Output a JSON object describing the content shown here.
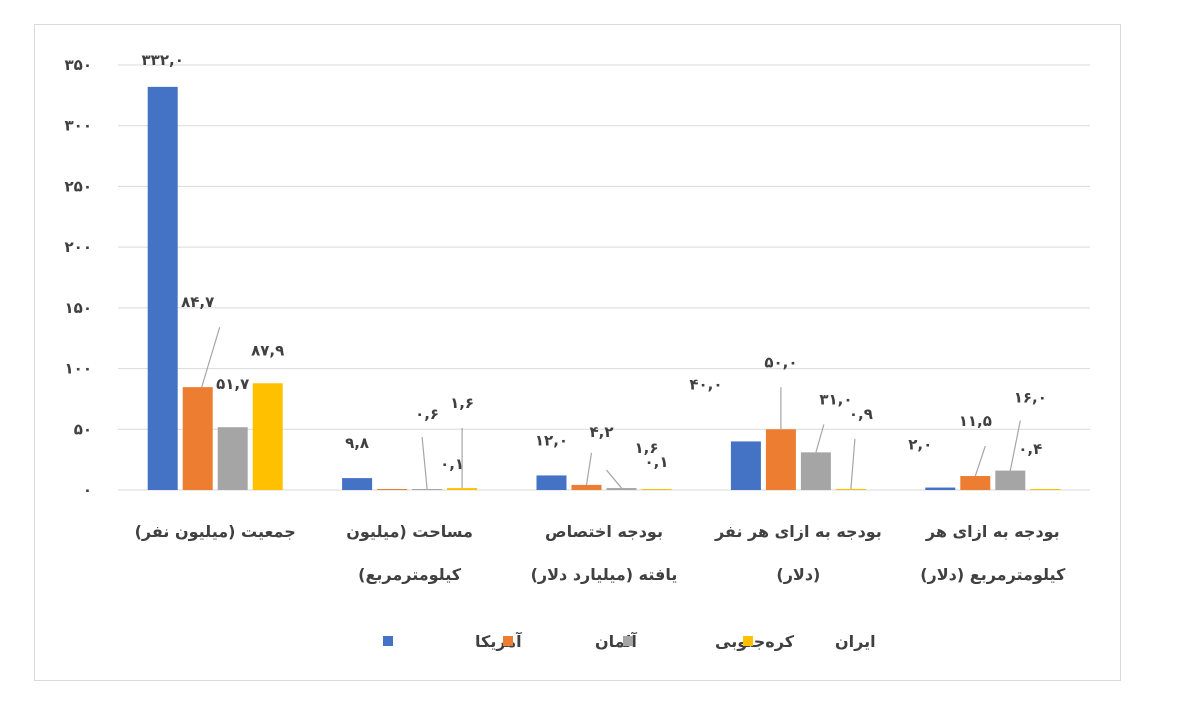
{
  "chart_data": {
    "type": "bar",
    "categories": [
      [
        "جمعیت (میلیون نفر)"
      ],
      [
        "مساحت (میلیون",
        "کیلومترمربع)"
      ],
      [
        "بودجه اختصاص",
        "یافته (میلیارد دلار)"
      ],
      [
        "بودجه به ازای هر نفر",
        "(دلار)"
      ],
      [
        "بودجه به ازای هر",
        "کیلومترمربع (دلار)"
      ]
    ],
    "series": [
      {
        "name": "آمریکا",
        "color": "#4472C4",
        "values": [
          332.0,
          9.8,
          12.0,
          40.0,
          2.0
        ],
        "labels": [
          "۳۳۲,۰",
          "۹,۸",
          "۱۲,۰",
          "۴۰,۰",
          "۲,۰"
        ]
      },
      {
        "name": "آلمان",
        "color": "#ED7D31",
        "values": [
          84.7,
          0.1,
          4.2,
          50.0,
          11.5
        ],
        "labels": [
          "۸۴,۷",
          "۰,۱",
          "۴,۲",
          "۵۰,۰",
          "۱۱,۵"
        ]
      },
      {
        "name": "کره‌جنوبی",
        "color": "#A5A5A5",
        "values": [
          51.7,
          0.6,
          1.6,
          31.0,
          16.0
        ],
        "labels": [
          "۵۱,۷",
          "۰,۶",
          "۱,۶",
          "۳۱,۰",
          "۱۶,۰"
        ]
      },
      {
        "name": "ایران",
        "color": "#FFC000",
        "values": [
          87.9,
          1.6,
          0.1,
          0.9,
          0.4
        ],
        "labels": [
          "۸۷,۹",
          "۱,۶",
          "۰,۱",
          "۰,۹",
          "۰,۴"
        ]
      }
    ],
    "ylim": [
      0,
      350
    ],
    "yticks": [
      0,
      50,
      100,
      150,
      200,
      250,
      300,
      350
    ],
    "ytick_labels": [
      "۰",
      "۵۰",
      "۱۰۰",
      "۱۵۰",
      "۲۰۰",
      "۲۵۰",
      "۳۰۰",
      "۳۵۰"
    ],
    "grid": true,
    "gridline_color": "#d9d9d9",
    "text_color": "#404040",
    "legend": "bottom"
  }
}
